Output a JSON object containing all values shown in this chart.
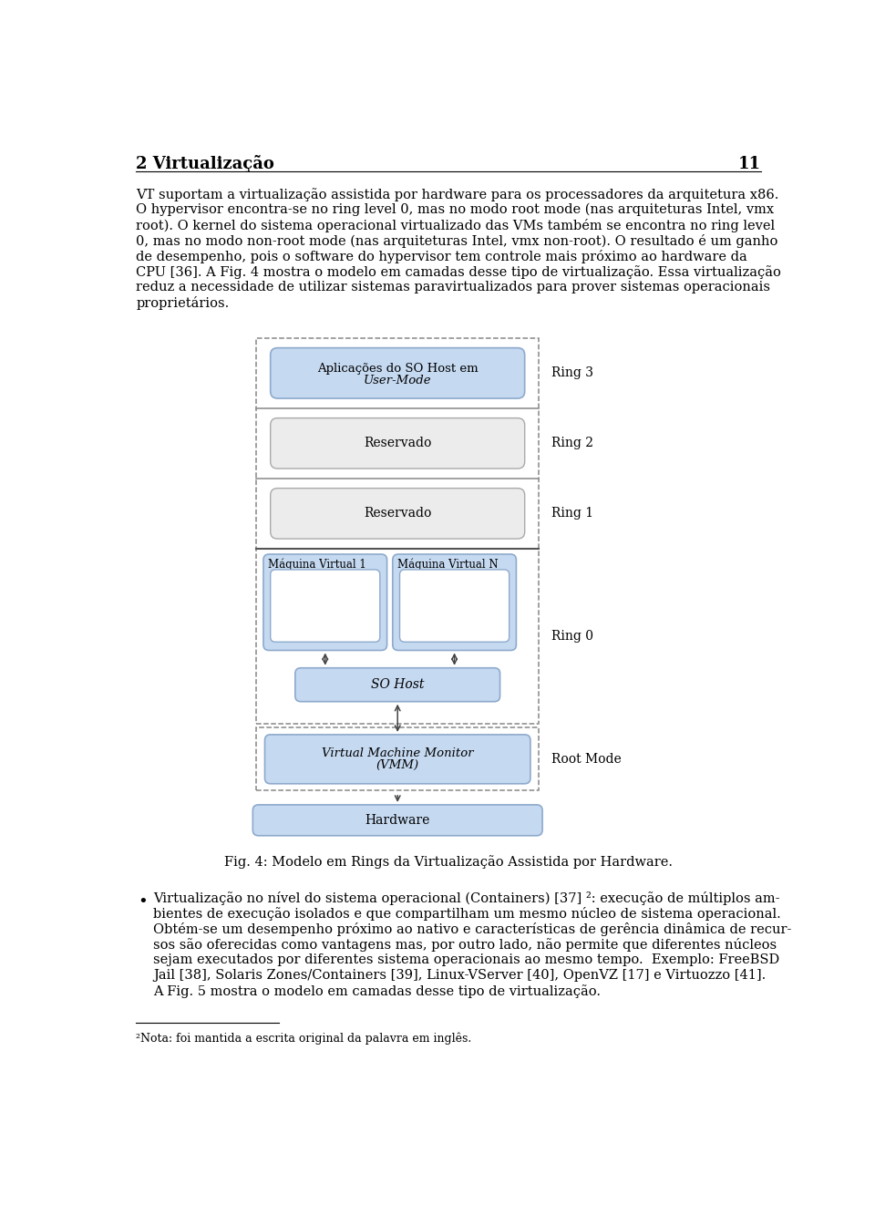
{
  "page_title": "2 Virtualização",
  "page_number": "11",
  "background_color": "#ffffff",
  "light_blue": "#c5d9f1",
  "light_gray": "#ececec",
  "white": "#ffffff",
  "border_blue": "#8eaacc",
  "border_gray": "#aaaaaa",
  "dashed_border": "#888888",
  "fig_caption": "Fig. 4: Modelo em Rings da Virtualização Assistida por Hardware.",
  "footnote": "²Nota: foi mantida a escrita original da palavra em inglês.",
  "para_lines": [
    "VT suportam a virtualização assistida por hardware para os processadores da arquitetura x86.",
    "O hypervisor encontra-se no ring level 0, mas no modo root mode (nas arquiteturas Intel, vmx",
    "root). O kernel do sistema operacional virtualizado das VMs também se encontra no ring level",
    "0, mas no modo non-root mode (nas arquiteturas Intel, vmx non-root). O resultado é um ganho",
    "de desempenho, pois o software do hypervisor tem controle mais próximo ao hardware da",
    "CPU [36]. A Fig. 4 mostra o modelo em camadas desse tipo de virtualização. Essa virtualização",
    "reduz a necessidade de utilizar sistemas paravirtualizados para prover sistemas operacionais",
    "proprietários."
  ],
  "bullet_lines": [
    "Virtualização no nível do sistema operacional (Containers) [37] ²: execução de múltiplos am-",
    "bientes de execução isolados e que compartilham um mesmo núcleo de sistema operacional.",
    "Obtém-se um desempenho próximo ao nativo e características de gerência dinâmica de recur-",
    "sos são oferecidas como vantagens mas, por outro lado, não permite que diferentes núcleos",
    "sejam executados por diferentes sistema operacionais ao mesmo tempo.  Exemplo: FreeBSD",
    "Jail [38], Solaris Zones/Containers [39], Linux-VServer [40], OpenVZ [17] e Virtuozzo [41].",
    "A Fig. 5 mostra o modelo em camadas desse tipo de virtualização."
  ]
}
